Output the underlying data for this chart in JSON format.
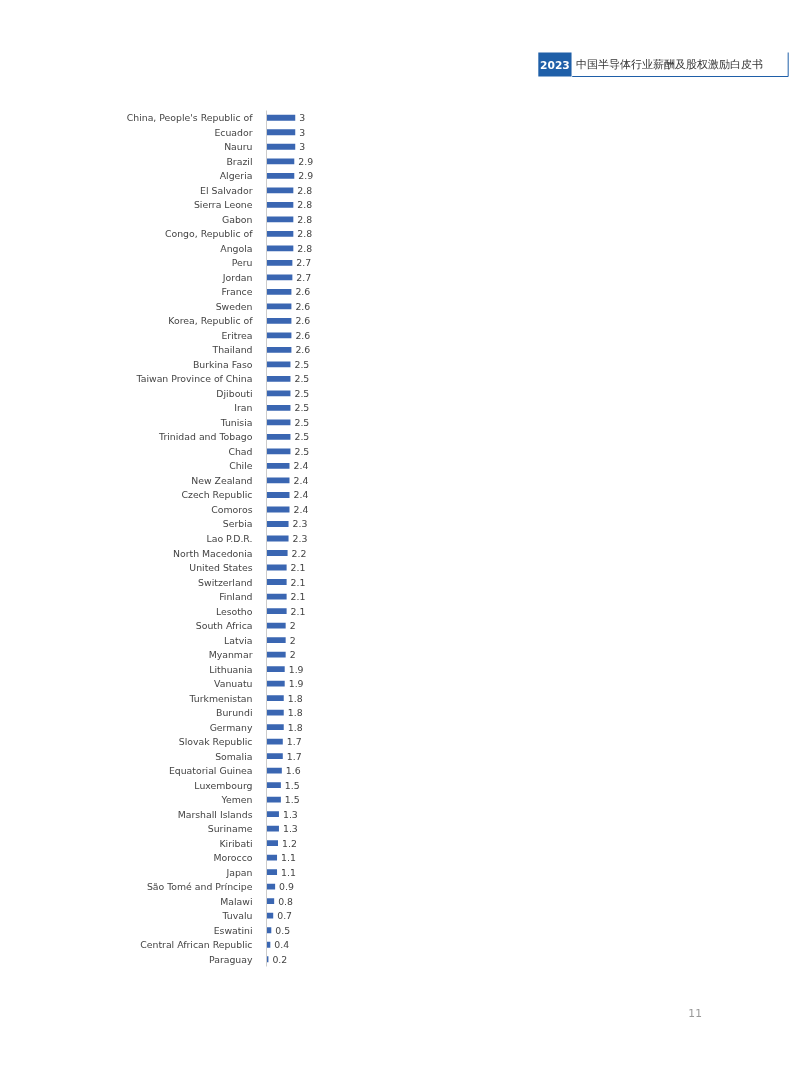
{
  "chart_data": {
    "type": "bar",
    "orientation": "horizontal",
    "title": "中国半导体行业薪酬及股权激励白皮书",
    "subtitle": "2023",
    "data_labels": true,
    "grid": false,
    "color": "#3a66b2",
    "categories": [
      "China, People's Republic of",
      "Ecuador",
      "Nauru",
      "Brazil",
      "Algeria",
      "El Salvador",
      "Sierra Leone",
      "Gabon",
      "Congo, Republic of",
      "Angola",
      "Peru",
      "Jordan",
      "France",
      "Sweden",
      "Korea, Republic of",
      "Eritrea",
      "Thailand",
      "Burkina Faso",
      "Taiwan Province of China",
      "Djibouti",
      "Iran",
      "Tunisia",
      "Trinidad and Tobago",
      "Chad",
      "Chile",
      "New Zealand",
      "Czech Republic",
      "Comoros",
      "Serbia",
      "Lao P.D.R.",
      "North Macedonia",
      "United States",
      "Switzerland",
      "Finland",
      "Lesotho",
      "South Africa",
      "Latvia",
      "Myanmar",
      "Lithuania",
      "Vanuatu",
      "Turkmenistan",
      "Burundi",
      "Germany",
      "Slovak Republic",
      "Somalia",
      "Equatorial Guinea",
      "Luxembourg",
      "Yemen",
      "Marshall Islands",
      "Suriname",
      "Kiribati",
      "Morocco",
      "Japan",
      "São Tomé and Príncipe",
      "Malawi",
      "Tuvalu",
      "Eswatini",
      "Central African Republic",
      "Paraguay"
    ],
    "values": [
      3,
      3,
      3,
      2.9,
      2.9,
      2.8,
      2.8,
      2.8,
      2.8,
      2.8,
      2.7,
      2.7,
      2.6,
      2.6,
      2.6,
      2.6,
      2.6,
      2.5,
      2.5,
      2.5,
      2.5,
      2.5,
      2.5,
      2.5,
      2.4,
      2.4,
      2.4,
      2.4,
      2.3,
      2.3,
      2.2,
      2.1,
      2.1,
      2.1,
      2.1,
      2,
      2,
      2,
      1.9,
      1.9,
      1.8,
      1.8,
      1.8,
      1.7,
      1.7,
      1.6,
      1.5,
      1.5,
      1.3,
      1.3,
      1.2,
      1.1,
      1.1,
      0.9,
      0.8,
      0.7,
      0.5,
      0.4,
      0.2
    ],
    "annotations": [
      "11"
    ]
  }
}
